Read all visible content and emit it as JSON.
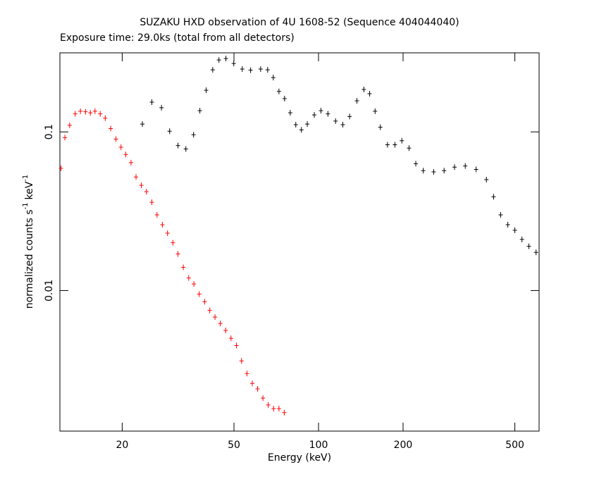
{
  "chart_data": {
    "type": "scatter",
    "title": "SUZAKU HXD observation of 4U 1608-52 (Sequence 404044040)",
    "subtitle": "Exposure time: 29.0ks (total from all detectors)",
    "x_label": "Energy (keV)",
    "y_label": [
      "normalized counts s",
      "-1",
      "keV",
      "-1"
    ],
    "x_log": true,
    "y_log": true,
    "xlim": [
      12,
      610
    ],
    "ylim": [
      0.0013,
      0.315
    ],
    "xticks": [
      20,
      50,
      100,
      200,
      500
    ],
    "yticks": [
      0.01,
      0.1
    ],
    "series": [
      {
        "color": "#ff0000",
        "x": [
          12.1,
          12.5,
          13.0,
          13.6,
          14.2,
          14.8,
          15.4,
          16.0,
          16.7,
          17.4,
          18.2,
          19.0,
          19.8,
          20.6,
          21.5,
          22.4,
          23.4,
          24.4,
          25.5,
          26.6,
          27.8,
          29.0,
          30.3,
          31.6,
          33.0,
          34.5,
          36.0,
          37.6,
          39.3,
          41.0,
          42.8,
          44.7,
          46.7,
          48.8,
          51.0,
          53.2,
          55.6,
          58.1,
          60.7,
          63.4,
          66.2,
          69.2,
          72.3,
          75.5
        ],
        "values": [
          0.059,
          0.092,
          0.11,
          0.13,
          0.135,
          0.134,
          0.132,
          0.135,
          0.13,
          0.122,
          0.105,
          0.09,
          0.08,
          0.072,
          0.064,
          0.052,
          0.046,
          0.042,
          0.036,
          0.03,
          0.026,
          0.023,
          0.02,
          0.017,
          0.014,
          0.012,
          0.011,
          0.0095,
          0.0085,
          0.0075,
          0.0068,
          0.0062,
          0.0056,
          0.005,
          0.0045,
          0.0036,
          0.003,
          0.0026,
          0.0024,
          0.0021,
          0.0019,
          0.0018,
          0.0018,
          0.0017
        ]
      },
      {
        "color": "#000000",
        "x": [
          23.6,
          25.5,
          27.6,
          29.5,
          31.6,
          33.7,
          35.9,
          37.8,
          39.8,
          42.0,
          44.2,
          46.8,
          49.9,
          53.5,
          57.3,
          62.2,
          65.9,
          69.0,
          72.3,
          75.7,
          79.3,
          83.0,
          86.9,
          91.2,
          96.6,
          102,
          108,
          115,
          122,
          129,
          137,
          145,
          152,
          159,
          166,
          176,
          187,
          198,
          210,
          222,
          236,
          257,
          280,
          305,
          333,
          364,
          396,
          420,
          445,
          472,
          500,
          530,
          561,
          595
        ],
        "values": [
          0.112,
          0.154,
          0.142,
          0.101,
          0.082,
          0.078,
          0.096,
          0.136,
          0.183,
          0.246,
          0.284,
          0.29,
          0.27,
          0.249,
          0.245,
          0.249,
          0.246,
          0.22,
          0.18,
          0.162,
          0.132,
          0.111,
          0.103,
          0.112,
          0.128,
          0.136,
          0.13,
          0.117,
          0.111,
          0.125,
          0.157,
          0.185,
          0.174,
          0.135,
          0.107,
          0.083,
          0.083,
          0.088,
          0.079,
          0.063,
          0.057,
          0.056,
          0.057,
          0.06,
          0.061,
          0.058,
          0.05,
          0.039,
          0.03,
          0.026,
          0.024,
          0.021,
          0.019,
          0.0174
        ]
      }
    ]
  }
}
